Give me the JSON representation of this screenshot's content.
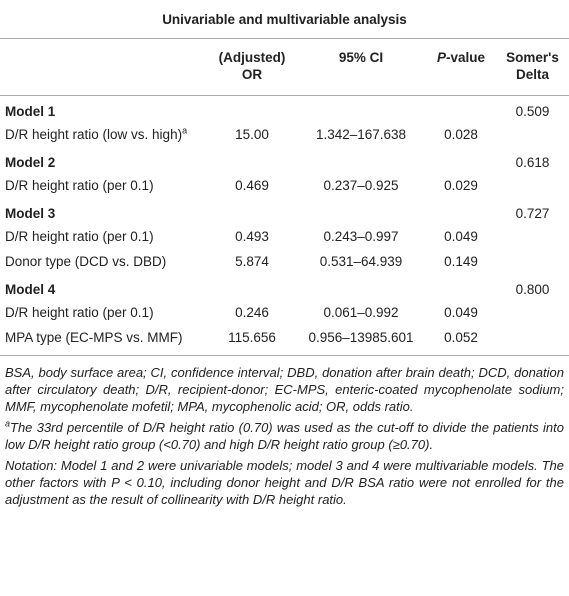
{
  "table": {
    "title": "Univariable and multivariable analysis",
    "columns": [
      "(Adjusted) OR",
      "95% CI",
      "P-value",
      "Somer's Delta"
    ],
    "models": [
      {
        "name": "Model 1",
        "somers_delta": "0.509",
        "rows": [
          {
            "label": "D/R height ratio (low vs. high)",
            "note": "a",
            "or": "15.00",
            "ci": "1.342–167.638",
            "p": "0.028"
          }
        ]
      },
      {
        "name": "Model 2",
        "somers_delta": "0.618",
        "rows": [
          {
            "label": "D/R height ratio (per 0.1)",
            "or": "0.469",
            "ci": "0.237–0.925",
            "p": "0.029"
          }
        ]
      },
      {
        "name": "Model 3",
        "somers_delta": "0.727",
        "rows": [
          {
            "label": "D/R height ratio (per 0.1)",
            "or": "0.493",
            "ci": "0.243–0.997",
            "p": "0.049"
          },
          {
            "label": "Donor type (DCD vs. DBD)",
            "or": "5.874",
            "ci": "0.531–64.939",
            "p": "0.149"
          }
        ]
      },
      {
        "name": "Model 4",
        "somers_delta": "0.800",
        "rows": [
          {
            "label": "D/R height ratio (per 0.1)",
            "or": "0.246",
            "ci": "0.061–0.992",
            "p": "0.049"
          },
          {
            "label": "MPA type (EC-MPS vs. MMF)",
            "or": "115.656",
            "ci": "0.956–13985.601",
            "p": "0.052"
          }
        ]
      }
    ]
  },
  "footnotes": {
    "abbreviations": "BSA, body surface area; CI, confidence interval; DBD, donation after brain death; DCD, donation after circulatory death; D/R, recipient-donor; EC-MPS, enteric-coated mycophenolate sodium; MMF, mycophenolate mofetil; MPA, mycophenolic acid; OR, odds ratio.",
    "note_marker": "a",
    "note": "The 33rd percentile of D/R height ratio (0.70) was used as the cut-off to divide the patients into low D/R height ratio group (<0.70) and high D/R height ratio group (≥0.70).",
    "notation": "Notation: Model 1 and 2 were univariable models; model 3 and 4 were multivariable models. The other factors with P < 0.10, including donor height and D/R BSA ratio were not enrolled for the adjustment as the result of collinearity with D/R height ratio."
  }
}
